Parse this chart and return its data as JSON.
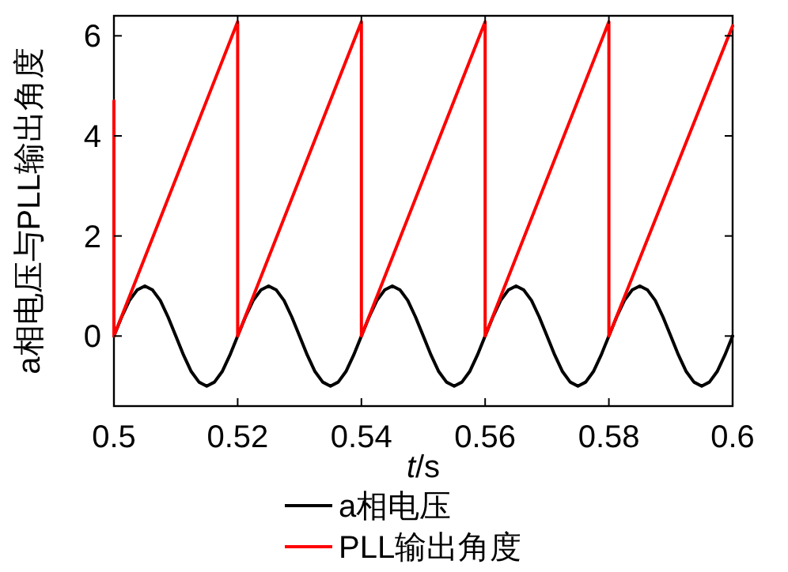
{
  "chart_data": {
    "type": "line",
    "xlabel": "t/s",
    "ylabel": "a相电压与PLL输出角度",
    "xlim": [
      0.5,
      0.6
    ],
    "xticks": [
      0.5,
      0.52,
      0.54,
      0.56,
      0.58,
      0.6
    ],
    "ylim": [
      -1.4,
      6.4
    ],
    "yticks": [
      0,
      2,
      4,
      6
    ],
    "grid": false,
    "legend": "bottom",
    "series": [
      {
        "name": "a相电压",
        "color": "#000000",
        "x": [
          0.5,
          0.50125,
          0.5025,
          0.50375,
          0.505,
          0.50625,
          0.5075,
          0.50875,
          0.51,
          0.51125,
          0.5125,
          0.51375,
          0.515,
          0.51625,
          0.5175,
          0.51875,
          0.52,
          0.52125,
          0.5225,
          0.52375,
          0.525,
          0.52625,
          0.5275,
          0.52875,
          0.53,
          0.53125,
          0.5325,
          0.53375,
          0.535,
          0.53625,
          0.5375,
          0.53875,
          0.54,
          0.54125,
          0.5425,
          0.54375,
          0.545,
          0.54625,
          0.5475,
          0.54875,
          0.55,
          0.55125,
          0.5525,
          0.55375,
          0.555,
          0.55625,
          0.5575,
          0.55875,
          0.56,
          0.56125,
          0.5625,
          0.56375,
          0.565,
          0.56625,
          0.5675,
          0.56875,
          0.57,
          0.57125,
          0.5725,
          0.57375,
          0.575,
          0.57625,
          0.5775,
          0.57875,
          0.58,
          0.58125,
          0.5825,
          0.58375,
          0.585,
          0.58625,
          0.5875,
          0.58875,
          0.59,
          0.59125,
          0.5925,
          0.59375,
          0.595,
          0.59625,
          0.5975,
          0.59875,
          0.6
        ],
        "values": [
          0,
          0.38,
          0.71,
          0.92,
          1,
          0.92,
          0.71,
          0.38,
          0,
          -0.38,
          -0.71,
          -0.92,
          -1,
          -0.92,
          -0.71,
          -0.38,
          0,
          0.38,
          0.71,
          0.92,
          1,
          0.92,
          0.71,
          0.38,
          0,
          -0.38,
          -0.71,
          -0.92,
          -1,
          -0.92,
          -0.71,
          -0.38,
          0,
          0.38,
          0.71,
          0.92,
          1,
          0.92,
          0.71,
          0.38,
          0,
          -0.38,
          -0.71,
          -0.92,
          -1,
          -0.92,
          -0.71,
          -0.38,
          0,
          0.38,
          0.71,
          0.92,
          1,
          0.92,
          0.71,
          0.38,
          0,
          -0.38,
          -0.71,
          -0.92,
          -1,
          -0.92,
          -0.71,
          -0.38,
          0,
          0.38,
          0.71,
          0.92,
          1,
          0.92,
          0.71,
          0.38,
          0,
          -0.38,
          -0.71,
          -0.92,
          -1,
          -0.92,
          -0.71,
          -0.38,
          0
        ]
      },
      {
        "name": "PLL输出角度",
        "color": "#ff0000",
        "x": [
          0.5,
          0.5,
          0.52,
          0.52,
          0.54,
          0.54,
          0.56,
          0.56,
          0.58,
          0.58,
          0.6
        ],
        "values": [
          4.7,
          0,
          6.28,
          0,
          6.28,
          0,
          6.28,
          0,
          6.28,
          0,
          6.2
        ]
      }
    ]
  }
}
